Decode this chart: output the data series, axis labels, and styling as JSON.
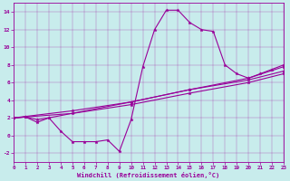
{
  "xlabel": "Windchill (Refroidissement éolien,°C)",
  "background_color": "#c8ecec",
  "line_color": "#990099",
  "xlim": [
    0,
    23
  ],
  "ylim": [
    -3,
    15
  ],
  "xticks": [
    0,
    1,
    2,
    3,
    4,
    5,
    6,
    7,
    8,
    9,
    10,
    11,
    12,
    13,
    14,
    15,
    16,
    17,
    18,
    19,
    20,
    21,
    22,
    23
  ],
  "yticks": [
    -2,
    0,
    2,
    4,
    6,
    8,
    10,
    12,
    14
  ],
  "series1": [
    [
      0,
      2
    ],
    [
      1,
      2.1
    ],
    [
      2,
      1.5
    ],
    [
      3,
      2.0
    ],
    [
      4,
      0.5
    ],
    [
      5,
      -0.7
    ],
    [
      6,
      -0.7
    ],
    [
      7,
      -0.7
    ],
    [
      8,
      -0.5
    ],
    [
      9,
      -1.8
    ],
    [
      10,
      1.8
    ],
    [
      11,
      7.8
    ],
    [
      12,
      12.0
    ],
    [
      13,
      14.2
    ],
    [
      14,
      14.2
    ],
    [
      15,
      12.8
    ],
    [
      16,
      12.0
    ],
    [
      17,
      11.8
    ],
    [
      18,
      8.0
    ],
    [
      19,
      7.0
    ],
    [
      20,
      6.5
    ],
    [
      21,
      7.0
    ],
    [
      22,
      7.5
    ],
    [
      23,
      8.0
    ]
  ],
  "series2": [
    [
      0,
      2.0
    ],
    [
      1,
      2.1
    ],
    [
      2,
      1.8
    ],
    [
      3,
      2.0
    ],
    [
      10,
      3.8
    ],
    [
      15,
      5.2
    ],
    [
      20,
      6.3
    ],
    [
      23,
      7.3
    ]
  ],
  "series3": [
    [
      0,
      2.0
    ],
    [
      5,
      2.5
    ],
    [
      10,
      3.5
    ],
    [
      15,
      4.8
    ],
    [
      20,
      6.0
    ],
    [
      23,
      7.0
    ]
  ],
  "series4": [
    [
      0,
      2.0
    ],
    [
      5,
      2.8
    ],
    [
      10,
      3.8
    ],
    [
      15,
      5.2
    ],
    [
      20,
      6.5
    ],
    [
      23,
      7.8
    ]
  ]
}
